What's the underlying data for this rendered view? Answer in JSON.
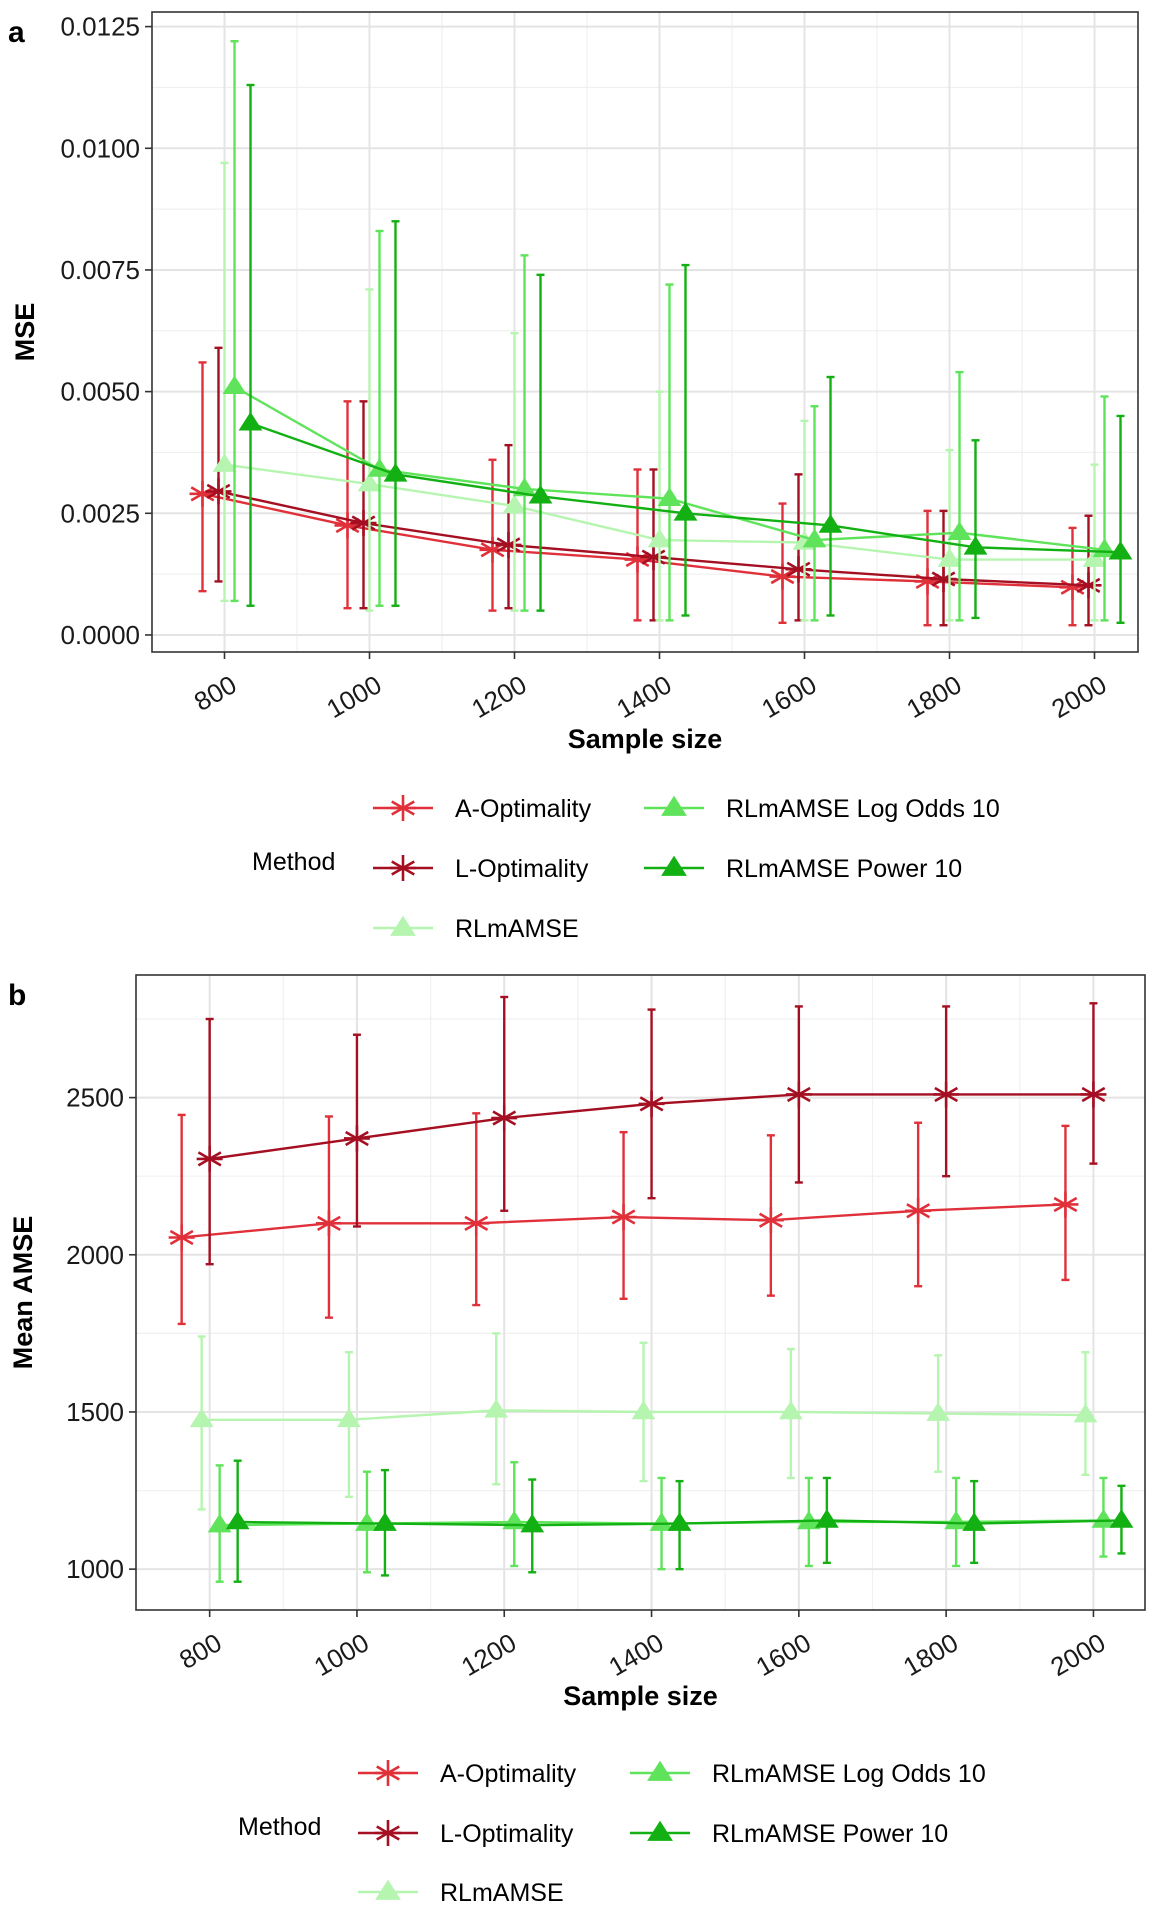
{
  "chart_data": [
    {
      "type": "line",
      "panel_label": "a",
      "xlabel": "Sample size",
      "ylabel": "MSE",
      "x_ticks": [
        "800",
        "1000",
        "1200",
        "1400",
        "1600",
        "1800",
        "2000"
      ],
      "y_ticks": [
        "0.0000",
        "0.0025",
        "0.0050",
        "0.0075",
        "0.0100",
        "0.0125"
      ],
      "x": [
        800,
        1000,
        1200,
        1400,
        1600,
        1800,
        2000
      ],
      "xlim": [
        700,
        2060
      ],
      "ylim": [
        -0.00035,
        0.0128
      ],
      "grid": true,
      "error_bars": true,
      "legend_title": "Method",
      "legend_position": "bottom",
      "series": [
        {
          "name": "A-Optimality",
          "color": "#e0303a",
          "marker": "asterisk",
          "values": [
            0.0029,
            0.00225,
            0.00175,
            0.00155,
            0.0012,
            0.0011,
            0.00098
          ],
          "lower": [
            0.0009,
            0.00055,
            0.0005,
            0.0003,
            0.00025,
            0.0002,
            0.0002
          ],
          "upper": [
            0.0056,
            0.0048,
            0.0036,
            0.0034,
            0.0027,
            0.00255,
            0.0022
          ]
        },
        {
          "name": "L-Optimality",
          "color": "#a50f22",
          "marker": "asterisk",
          "values": [
            0.00295,
            0.0023,
            0.00185,
            0.0016,
            0.00135,
            0.00115,
            0.00102
          ],
          "lower": [
            0.0011,
            0.00055,
            0.00055,
            0.0003,
            0.0003,
            0.0002,
            0.0002
          ],
          "upper": [
            0.0059,
            0.0048,
            0.0039,
            0.0034,
            0.0033,
            0.00255,
            0.00245
          ]
        },
        {
          "name": "RLmAMSE",
          "color": "#b6f5b0",
          "marker": "triangle",
          "values": [
            0.0035,
            0.0031,
            0.00265,
            0.00195,
            0.0019,
            0.00155,
            0.00155
          ],
          "lower": [
            0.0007,
            0.0005,
            0.0005,
            0.0003,
            0.0003,
            0.0003,
            0.0003
          ],
          "upper": [
            0.0097,
            0.0071,
            0.0062,
            0.005,
            0.0044,
            0.0038,
            0.0035
          ]
        },
        {
          "name": "RLmAMSE Log Odds 10",
          "color": "#5fe35a",
          "marker": "triangle",
          "values": [
            0.0051,
            0.0034,
            0.003,
            0.0028,
            0.00195,
            0.0021,
            0.00175
          ],
          "lower": [
            0.0007,
            0.0006,
            0.0005,
            0.0003,
            0.0003,
            0.0003,
            0.0003
          ],
          "upper": [
            0.0122,
            0.0083,
            0.0078,
            0.0072,
            0.0047,
            0.0054,
            0.0049
          ]
        },
        {
          "name": "RLmAMSE Power 10",
          "color": "#12b012",
          "marker": "triangle",
          "values": [
            0.00435,
            0.0033,
            0.00285,
            0.0025,
            0.00225,
            0.0018,
            0.0017
          ],
          "lower": [
            0.0006,
            0.0006,
            0.0005,
            0.0004,
            0.0004,
            0.00035,
            0.00025
          ],
          "upper": [
            0.0113,
            0.0085,
            0.0074,
            0.0076,
            0.0053,
            0.004,
            0.0045
          ]
        }
      ]
    },
    {
      "type": "line",
      "panel_label": "b",
      "xlabel": "Sample size",
      "ylabel": "Mean AMSE",
      "x_ticks": [
        "800",
        "1000",
        "1200",
        "1400",
        "1600",
        "1800",
        "2000"
      ],
      "y_ticks": [
        "1000",
        "1500",
        "2000",
        "2500"
      ],
      "x": [
        800,
        1000,
        1200,
        1400,
        1600,
        1800,
        2000
      ],
      "xlim": [
        700,
        2070
      ],
      "ylim": [
        870,
        2890
      ],
      "grid": true,
      "error_bars": true,
      "legend_title": "Method",
      "legend_position": "bottom",
      "series": [
        {
          "name": "A-Optimality",
          "color": "#e0303a",
          "marker": "asterisk",
          "values": [
            2055,
            2100,
            2100,
            2120,
            2110,
            2140,
            2160
          ],
          "lower": [
            1780,
            1800,
            1840,
            1860,
            1870,
            1900,
            1920
          ],
          "upper": [
            2445,
            2440,
            2450,
            2390,
            2380,
            2420,
            2410
          ]
        },
        {
          "name": "L-Optimality",
          "color": "#a50f22",
          "marker": "asterisk",
          "values": [
            2305,
            2370,
            2435,
            2480,
            2510,
            2510,
            2510
          ],
          "lower": [
            1970,
            2090,
            2140,
            2180,
            2230,
            2250,
            2290
          ],
          "upper": [
            2750,
            2700,
            2820,
            2780,
            2790,
            2790,
            2800
          ]
        },
        {
          "name": "RLmAMSE",
          "color": "#b6f5b0",
          "marker": "triangle",
          "values": [
            1475,
            1475,
            1505,
            1500,
            1500,
            1495,
            1490
          ],
          "lower": [
            1190,
            1230,
            1270,
            1280,
            1290,
            1310,
            1300
          ],
          "upper": [
            1740,
            1690,
            1750,
            1720,
            1700,
            1680,
            1690
          ]
        },
        {
          "name": "RLmAMSE Log Odds 10",
          "color": "#5fe35a",
          "marker": "triangle",
          "values": [
            1140,
            1145,
            1150,
            1145,
            1150,
            1150,
            1155
          ],
          "lower": [
            960,
            990,
            1010,
            1000,
            1010,
            1010,
            1040
          ],
          "upper": [
            1330,
            1310,
            1340,
            1290,
            1290,
            1290,
            1290
          ]
        },
        {
          "name": "RLmAMSE Power 10",
          "color": "#12b012",
          "marker": "triangle",
          "values": [
            1150,
            1145,
            1140,
            1145,
            1155,
            1145,
            1155
          ],
          "lower": [
            960,
            980,
            990,
            1000,
            1020,
            1020,
            1050
          ],
          "upper": [
            1345,
            1315,
            1285,
            1280,
            1290,
            1280,
            1265
          ]
        }
      ]
    }
  ]
}
